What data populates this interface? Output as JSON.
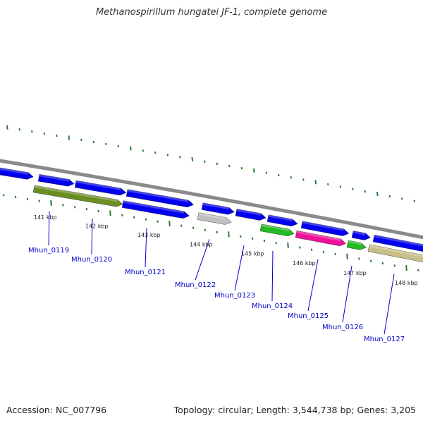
{
  "title": "Methanospirillum hungatei JF-1, complete genome",
  "footer": {
    "accession": "Accession: NC_007796",
    "summary": "Topology: circular; Length: 3,544,738 bp; Genes: 3,205"
  },
  "colors": {
    "backbone": "#8a8a8a",
    "cds": "#0000ee",
    "olive": "#6b8e23",
    "gray": "#c0c0c0",
    "green": "#22bb22",
    "magenta": "#ee1199",
    "khaki": "#c8c088",
    "tick": "#2e7d32",
    "label": "#0000cc"
  },
  "scale_labels": [
    "141 kbp",
    "142 kbp",
    "143 kbp",
    "144 kbp",
    "145 kbp",
    "146 kbp",
    "147 kbp",
    "148 kbp"
  ],
  "gene_labels": [
    "Mhun_0119",
    "Mhun_0120",
    "Mhun_0121",
    "Mhun_0122",
    "Mhun_0123",
    "Mhun_0124",
    "Mhun_0125",
    "Mhun_0126",
    "Mhun_0127"
  ]
}
